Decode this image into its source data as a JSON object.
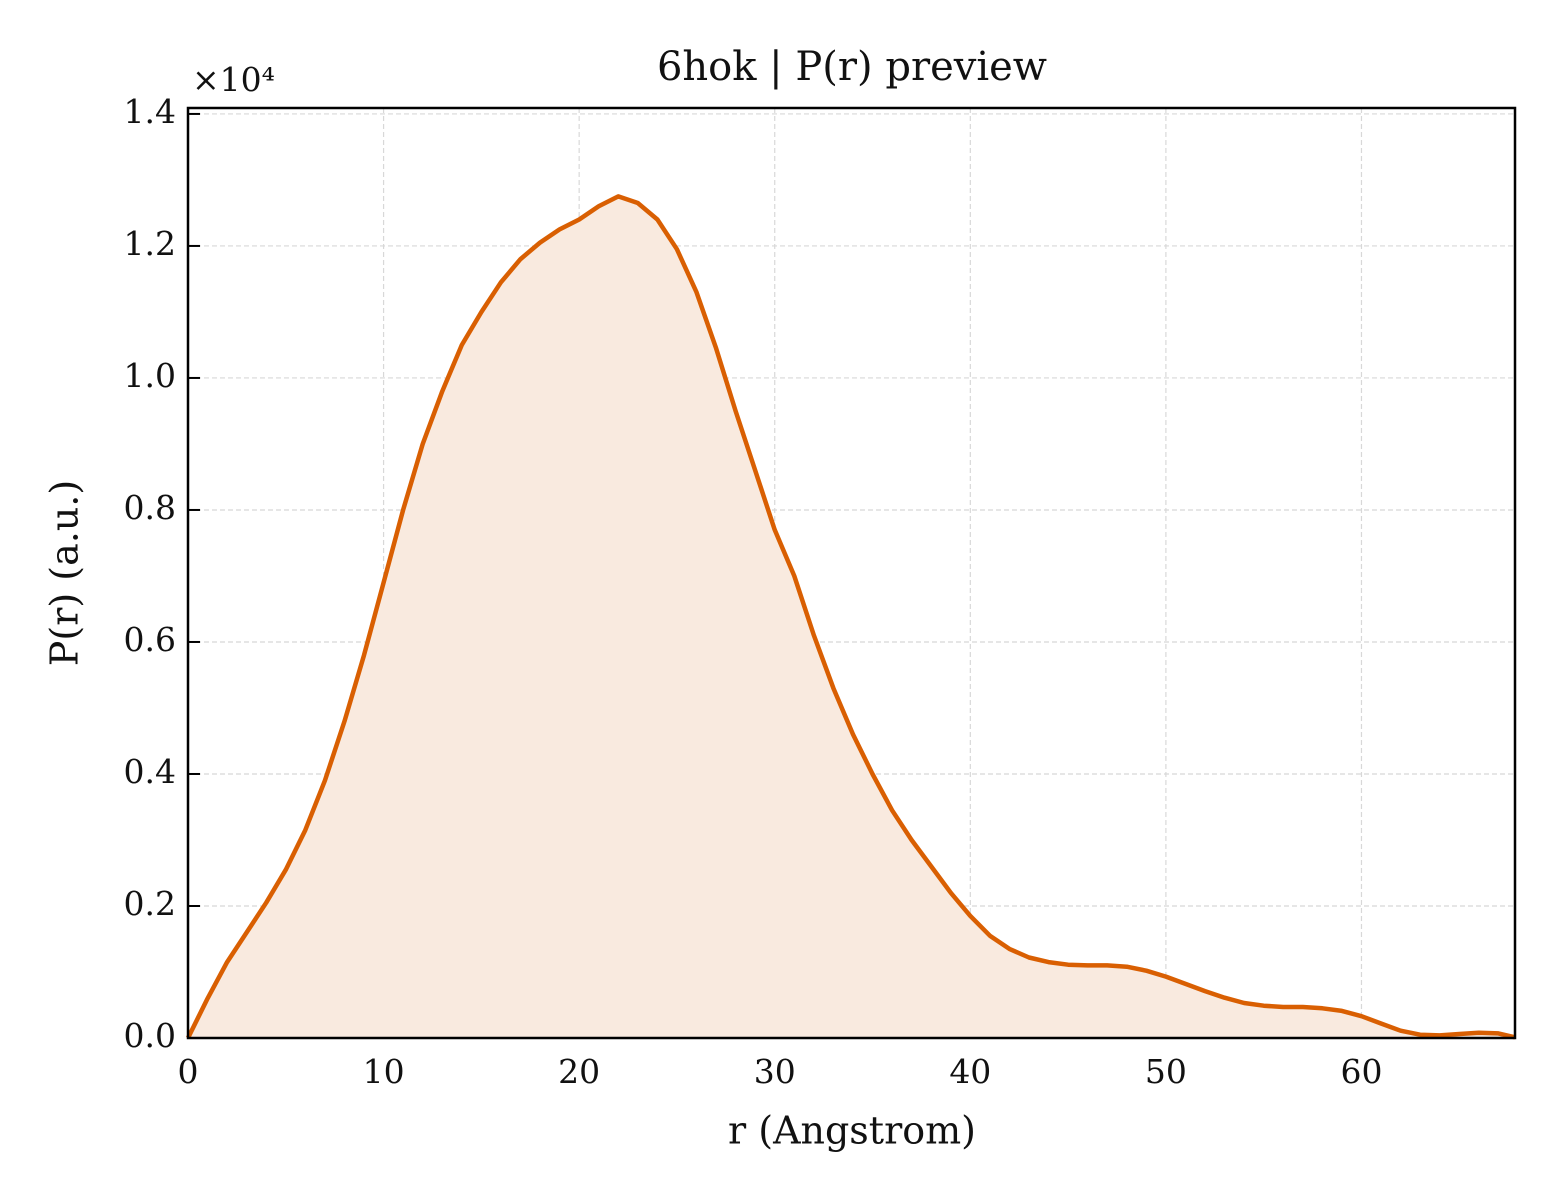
{
  "chart_data": {
    "type": "area",
    "title": "6hok | P(r) preview",
    "x_label": "r (Angstrom)",
    "y_label": "P(r) (a.u.)",
    "y_offset_label": "×10⁴",
    "color": "#d95f02",
    "fill_color": "#f9eadf",
    "grid": true,
    "xlim": [
      0,
      67.85
    ],
    "xticks": [
      0,
      10,
      20,
      30,
      40,
      50,
      60
    ],
    "ylim": [
      0,
      14090
    ],
    "yticks": [
      {
        "value": 0,
        "label": "0.0"
      },
      {
        "value": 2000,
        "label": "0.2"
      },
      {
        "value": 4000,
        "label": "0.4"
      },
      {
        "value": 6000,
        "label": "0.6"
      },
      {
        "value": 8000,
        "label": "0.8"
      },
      {
        "value": 10000,
        "label": "1.0"
      },
      {
        "value": 12000,
        "label": "1.2"
      },
      {
        "value": 14000,
        "label": "1.4"
      }
    ],
    "x": [
      0,
      1,
      2,
      3,
      4,
      5,
      6,
      7,
      8,
      9,
      10,
      11,
      12,
      13,
      14,
      15,
      16,
      17,
      18,
      19,
      20,
      21,
      22,
      23,
      24,
      25,
      26,
      27,
      28,
      29,
      30,
      31,
      32,
      33,
      34,
      35,
      36,
      37,
      38,
      39,
      40,
      41,
      42,
      43,
      44,
      45,
      46,
      47,
      48,
      49,
      50,
      51,
      52,
      53,
      54,
      55,
      56,
      57,
      58,
      59,
      60,
      61,
      62,
      63,
      64,
      65,
      66,
      67,
      67.85
    ],
    "values": [
      0,
      600,
      1150,
      1600,
      2050,
      2550,
      3150,
      3900,
      4800,
      5800,
      6900,
      8000,
      9000,
      9800,
      10500,
      11000,
      11450,
      11800,
      12050,
      12250,
      12400,
      12600,
      12750,
      12650,
      12400,
      11950,
      11300,
      10450,
      9500,
      8600,
      7700,
      7000,
      6100,
      5300,
      4600,
      4000,
      3450,
      3000,
      2600,
      2200,
      1850,
      1550,
      1350,
      1220,
      1150,
      1110,
      1100,
      1100,
      1080,
      1020,
      930,
      820,
      710,
      610,
      530,
      490,
      470,
      470,
      450,
      410,
      330,
      220,
      110,
      50,
      40,
      60,
      80,
      70,
      10
    ]
  }
}
